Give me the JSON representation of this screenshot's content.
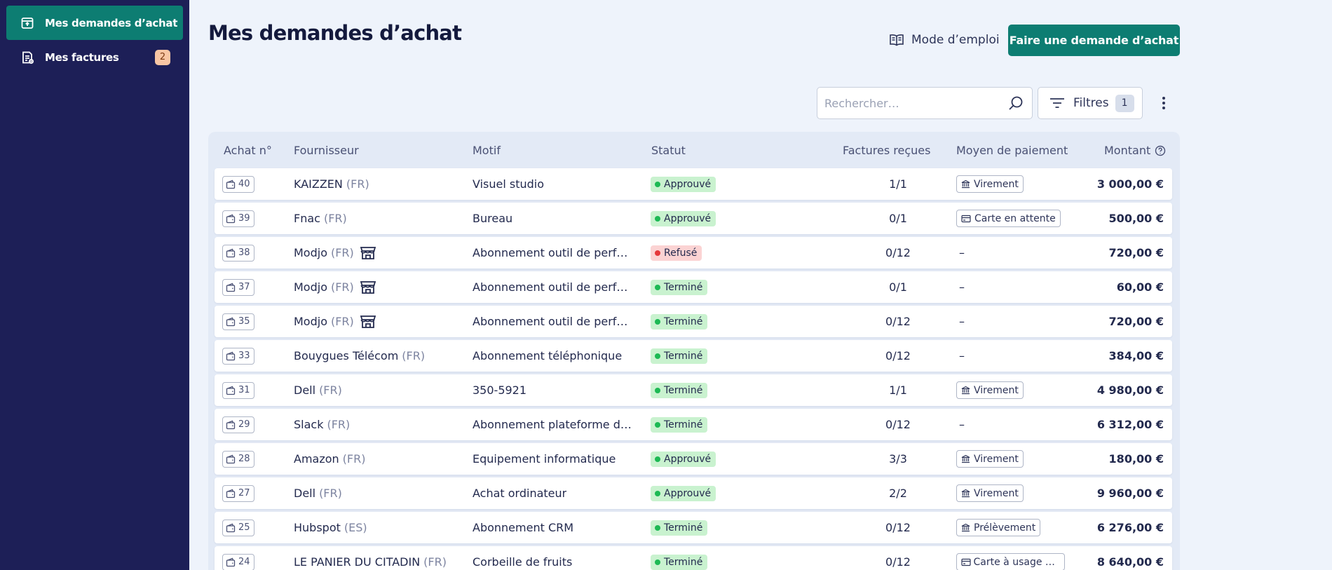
{
  "sidebar": {
    "items": [
      {
        "label": "Mes demandes d’achat",
        "icon": "purchase-request-icon",
        "active": true
      },
      {
        "label": "Mes factures",
        "icon": "invoice-icon",
        "badge": "2",
        "active": false
      }
    ]
  },
  "header": {
    "title": "Mes demandes d’achat",
    "guide_label": "Mode d’emploi",
    "primary_label": "Faire une demande d’achat"
  },
  "toolbar": {
    "search_placeholder": "Rechercher…",
    "filters_label": "Filtres",
    "filters_count": "1"
  },
  "table": {
    "columns": [
      "Achat n°",
      "Fournisseur",
      "Motif",
      "Statut",
      "Factures reçues",
      "Moyen de paiement",
      "Montant"
    ],
    "rows": [
      {
        "id": "40",
        "supplier": "KAIZZEN",
        "country": "(FR)",
        "store": false,
        "motif": "Visuel studio",
        "status": "Approuvé",
        "factures": "1/1",
        "payment": "Virement",
        "payment_icon": "bank-icon",
        "amount": "3 000,00 €"
      },
      {
        "id": "39",
        "supplier": "Fnac",
        "country": "(FR)",
        "store": false,
        "motif": "Bureau",
        "status": "Approuvé",
        "factures": "0/1",
        "payment": "Carte en attente",
        "payment_icon": "card-icon",
        "amount": "500,00 €"
      },
      {
        "id": "38",
        "supplier": "Modjo",
        "country": "(FR)",
        "store": true,
        "motif": "Abonnement outil de perfor…",
        "status": "Refusé",
        "factures": "0/12",
        "payment": "",
        "payment_icon": "",
        "amount": "720,00 €"
      },
      {
        "id": "37",
        "supplier": "Modjo",
        "country": "(FR)",
        "store": true,
        "motif": "Abonnement outil de perfor…",
        "status": "Terminé",
        "factures": "0/1",
        "payment": "",
        "payment_icon": "",
        "amount": "60,00 €"
      },
      {
        "id": "35",
        "supplier": "Modjo",
        "country": "(FR)",
        "store": true,
        "motif": "Abonnement outil de perfor…",
        "status": "Terminé",
        "factures": "0/12",
        "payment": "",
        "payment_icon": "",
        "amount": "720,00 €"
      },
      {
        "id": "33",
        "supplier": "Bouygues Télécom",
        "country": "(FR)",
        "store": false,
        "motif": "Abonnement téléphonique",
        "status": "Terminé",
        "factures": "0/12",
        "payment": "",
        "payment_icon": "",
        "amount": "384,00 €"
      },
      {
        "id": "31",
        "supplier": "Dell",
        "country": "(FR)",
        "store": false,
        "motif": "350-5921",
        "status": "Terminé",
        "factures": "1/1",
        "payment": "Virement",
        "payment_icon": "bank-icon",
        "amount": "4 980,00 €"
      },
      {
        "id": "29",
        "supplier": "Slack",
        "country": "(FR)",
        "store": false,
        "motif": "Abonnement plateforme de …",
        "status": "Terminé",
        "factures": "0/12",
        "payment": "",
        "payment_icon": "",
        "amount": "6 312,00 €"
      },
      {
        "id": "28",
        "supplier": "Amazon",
        "country": "(FR)",
        "store": false,
        "motif": "Equipement informatique",
        "status": "Approuvé",
        "factures": "3/3",
        "payment": "Virement",
        "payment_icon": "bank-icon",
        "amount": "180,00 €"
      },
      {
        "id": "27",
        "supplier": "Dell",
        "country": "(FR)",
        "store": false,
        "motif": "Achat ordinateur",
        "status": "Approuvé",
        "factures": "2/2",
        "payment": "Virement",
        "payment_icon": "bank-icon",
        "amount": "9 960,00 €"
      },
      {
        "id": "25",
        "supplier": "Hubspot",
        "country": "(ES)",
        "store": false,
        "motif": "Abonnement CRM",
        "status": "Terminé",
        "factures": "0/12",
        "payment": "Prélèvement",
        "payment_icon": "bank-icon",
        "amount": "6 276,00 €"
      },
      {
        "id": "24",
        "supplier": "LE PANIER DU CITADIN",
        "country": "(FR)",
        "store": false,
        "motif": "Corbeille de fruits",
        "status": "Terminé",
        "factures": "0/12",
        "payment": "Carte à usage un…",
        "payment_icon": "card-icon",
        "amount": "8 640,00 €"
      }
    ],
    "empty_payment": "–"
  },
  "colors": {
    "sidebar_bg": "#1d1f57",
    "accent": "#0d7d72",
    "page_bg": "#eef3fb",
    "status_approved_bg": "#c9f2cf",
    "status_done_bg": "#c9f2cf",
    "status_refused_bg": "#fbd3d3",
    "dot_green": "#1db954",
    "dot_red": "#e5383b"
  }
}
